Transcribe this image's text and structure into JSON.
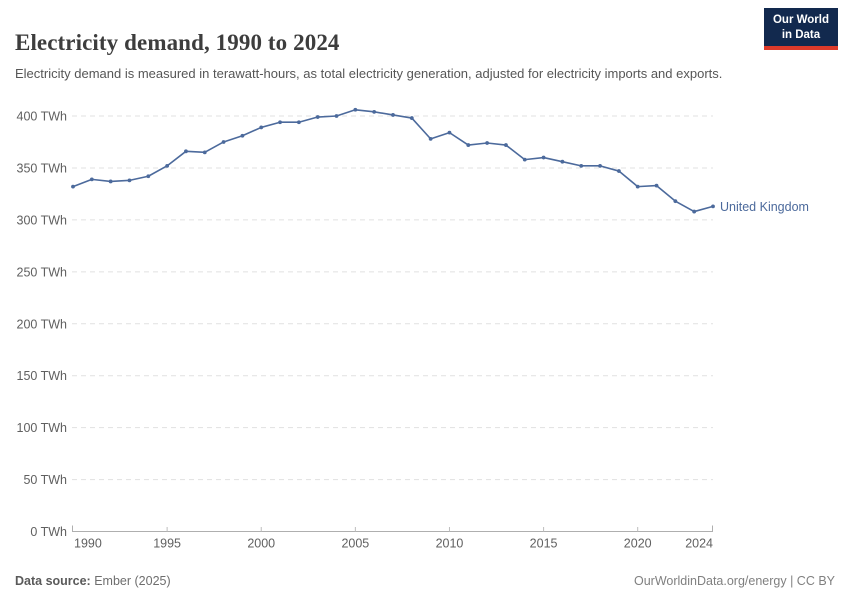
{
  "header": {
    "title": "Electricity demand, 1990 to 2024",
    "subtitle": "Electricity demand is measured in terawatt-hours, as total electricity generation, adjusted for electricity imports and exports."
  },
  "logo": {
    "line1": "Our World",
    "line2": "in Data"
  },
  "chart_data": {
    "type": "line",
    "title": "Electricity demand, 1990 to 2024",
    "xlabel": "",
    "ylabel": "",
    "unit": "TWh",
    "x": [
      1990,
      1991,
      1992,
      1993,
      1994,
      1995,
      1996,
      1997,
      1998,
      1999,
      2000,
      2001,
      2002,
      2003,
      2004,
      2005,
      2006,
      2007,
      2008,
      2009,
      2010,
      2011,
      2012,
      2013,
      2014,
      2015,
      2016,
      2017,
      2018,
      2019,
      2020,
      2021,
      2022,
      2023,
      2024
    ],
    "series": [
      {
        "name": "United Kingdom",
        "color": "#4c6a9c",
        "values": [
          332,
          339,
          337,
          338,
          342,
          352,
          366,
          365,
          375,
          381,
          389,
          394,
          394,
          399,
          400,
          406,
          404,
          401,
          398,
          378,
          384,
          372,
          374,
          372,
          358,
          360,
          356,
          352,
          352,
          347,
          332,
          333,
          318,
          308,
          313
        ]
      }
    ],
    "xticks": [
      1990,
      1995,
      2000,
      2005,
      2010,
      2015,
      2020,
      2024
    ],
    "yticks": [
      0,
      50,
      100,
      150,
      200,
      250,
      300,
      350,
      400
    ],
    "ytick_suffix": " TWh",
    "xlim": [
      1990,
      2024
    ],
    "ylim": [
      0,
      420
    ],
    "grid": "horizontal-dashed",
    "legend_position": "end-of-line-label",
    "colors": {
      "line": "#4c6a9c",
      "grid": "#e1e1e1",
      "axis": "#afafaf",
      "tick_text": "#606060"
    }
  },
  "footer": {
    "source_label": "Data source:",
    "source_value": "Ember (2025)",
    "credit": "OurWorldinData.org/energy | CC BY"
  }
}
